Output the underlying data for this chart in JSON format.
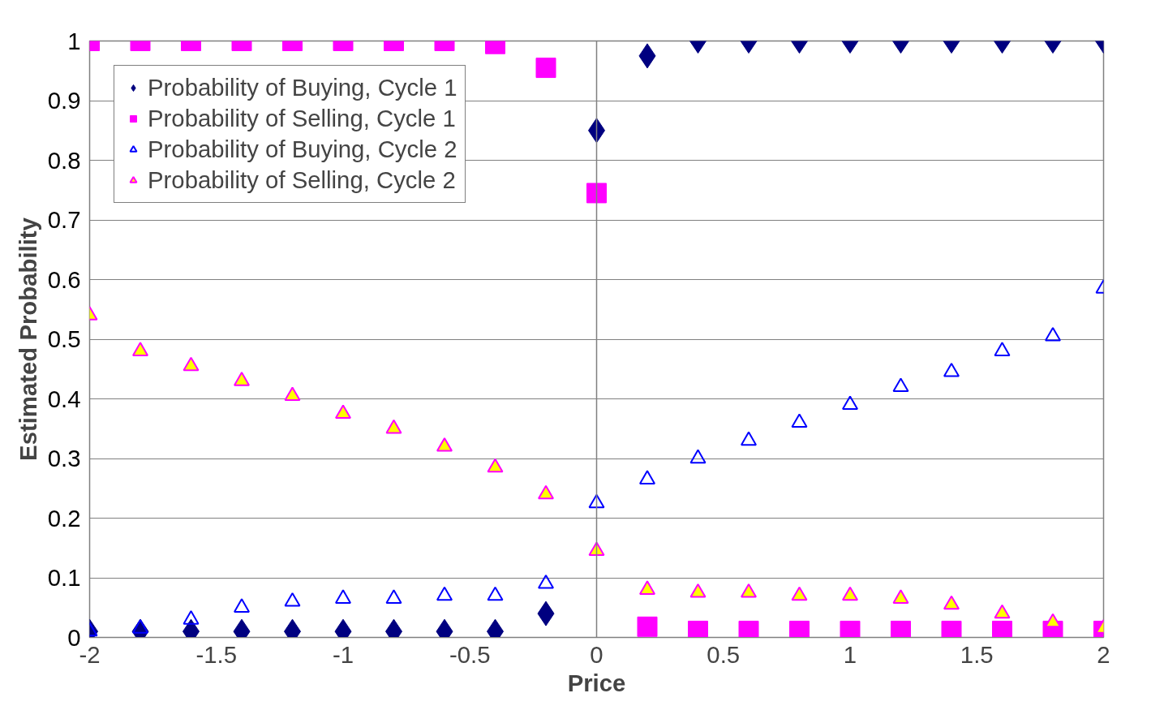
{
  "chart_data": {
    "type": "scatter",
    "xlabel": "Price",
    "ylabel": "Estimated Probability",
    "x": [
      -2,
      -1.8,
      -1.6,
      -1.4,
      -1.2,
      -1,
      -0.8,
      -0.6,
      -0.4,
      -0.2,
      0,
      0.2,
      0.4,
      0.6,
      0.8,
      1,
      1.2,
      1.4,
      1.6,
      1.8,
      2
    ],
    "xlim": [
      -2,
      2
    ],
    "xticks": [
      -2,
      -1.5,
      -1,
      -0.5,
      0,
      0.5,
      1,
      1.5,
      2
    ],
    "ylim": [
      0,
      1
    ],
    "yticks": [
      0,
      0.1,
      0.2,
      0.3,
      0.4,
      0.5,
      0.6,
      0.7,
      0.8,
      0.9,
      1
    ],
    "grid": "y",
    "legend": "top left",
    "series": [
      {
        "name": "Probability of Buying, Cycle 1",
        "color": "#000080",
        "marker": "diamond",
        "values": [
          0.01,
          0.01,
          0.01,
          0.01,
          0.01,
          0.01,
          0.01,
          0.01,
          0.01,
          0.04,
          0.85,
          0.975,
          1,
          1,
          1,
          1,
          1,
          1,
          1,
          1,
          1
        ]
      },
      {
        "name": "Probability of Selling, Cycle 1",
        "color": "#ff00ff",
        "marker": "square",
        "values": [
          1,
          1,
          1,
          1,
          1,
          1,
          1,
          1,
          0.995,
          0.955,
          0.745,
          0.018,
          0.011,
          0.011,
          0.011,
          0.011,
          0.011,
          0.011,
          0.011,
          0.011,
          0.011
        ]
      },
      {
        "name": "Probability of Buying, Cycle 2",
        "color": "#0000ff",
        "marker": "triangle",
        "values": [
          0.01,
          0.015,
          0.03,
          0.05,
          0.06,
          0.065,
          0.065,
          0.07,
          0.07,
          0.09,
          0.225,
          0.265,
          0.3,
          0.33,
          0.36,
          0.39,
          0.42,
          0.445,
          0.48,
          0.505,
          0.585
        ]
      },
      {
        "name": "Probability of Selling, Cycle 2",
        "color": "#ff00ff",
        "marker": "triangle",
        "colors": [
          "#ffff00",
          "#ffff00",
          "#ffff00",
          "#ffff00",
          "#ffff00",
          "#ffff00",
          "#ffff00",
          "#ffff00",
          "#ffff00",
          "#ffff00",
          "#ffff00",
          "#ffff00",
          "#ffff00",
          "#ffff00",
          "#ffff00",
          "#ffff00",
          "#ffff00",
          "#ffff00",
          "#ffff00",
          "#ffff00",
          "#ffff00"
        ],
        "values": [
          0.54,
          0.48,
          0.455,
          0.43,
          0.405,
          0.375,
          0.35,
          0.32,
          0.285,
          0.24,
          0.145,
          0.08,
          0.075,
          0.075,
          0.07,
          0.07,
          0.065,
          0.055,
          0.04,
          0.025,
          0.015
        ]
      }
    ]
  }
}
